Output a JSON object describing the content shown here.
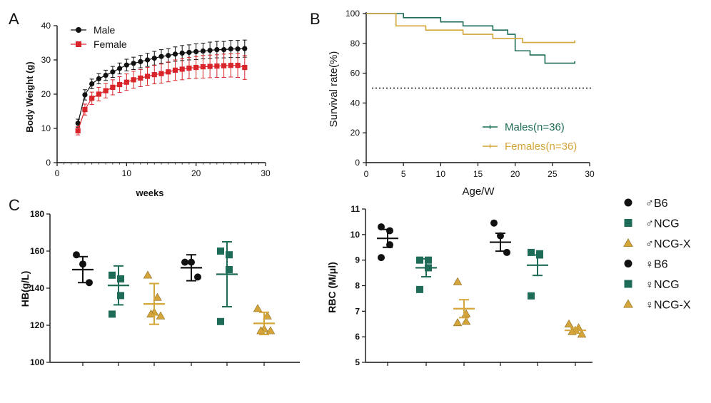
{
  "colors": {
    "black": "#111111",
    "red": "#d9252a",
    "teal": "#1e6b57",
    "gold": "#d4a53a"
  },
  "chart_data": [
    {
      "panel": "A",
      "type": "line",
      "xlabel": "weeks",
      "ylabel": "Body Weight (g)",
      "xlim": [
        0,
        30
      ],
      "ylim": [
        0,
        40
      ],
      "xticks": [
        "0",
        "10",
        "20",
        "30"
      ],
      "yticks": [
        "0",
        "10",
        "20",
        "30",
        "40"
      ],
      "legend": {
        "position": "top-left"
      },
      "x": [
        3,
        4,
        5,
        6,
        7,
        8,
        9,
        10,
        11,
        12,
        13,
        14,
        15,
        16,
        17,
        18,
        19,
        20,
        21,
        22,
        23,
        24,
        25,
        26,
        27
      ],
      "series": [
        {
          "name": "Male",
          "marker": "circle",
          "color": "#111111",
          "values": [
            11.5,
            19.8,
            23,
            24.5,
            25.5,
            26.5,
            27.5,
            28.5,
            29,
            29.5,
            30,
            30.5,
            31,
            31.3,
            31.7,
            32,
            32.2,
            32.4,
            32.6,
            32.8,
            33,
            33,
            33.2,
            33.2,
            33.3
          ],
          "errors": [
            1.2,
            1.5,
            1.4,
            1.5,
            1.5,
            1.6,
            1.6,
            1.7,
            1.8,
            1.8,
            1.9,
            2,
            2,
            2,
            2.1,
            2.2,
            2.2,
            2.3,
            2.3,
            2.4,
            2.4,
            2.4,
            2.5,
            2.5,
            2.5
          ]
        },
        {
          "name": "Female",
          "marker": "square",
          "color": "#d9252a",
          "values": [
            9.3,
            15.5,
            18.8,
            20,
            21,
            22,
            22.8,
            23.5,
            24.2,
            24.7,
            25.2,
            25.7,
            26,
            26.5,
            27,
            27.3,
            27.6,
            27.8,
            28,
            28.1,
            28.2,
            28.3,
            28.4,
            28.4,
            27.8
          ],
          "errors": [
            1.2,
            1.6,
            1.8,
            2,
            2.1,
            2.2,
            2.3,
            2.4,
            2.5,
            2.5,
            2.6,
            2.7,
            2.8,
            2.9,
            3,
            3.1,
            3.1,
            3.2,
            3.3,
            3.3,
            3.3,
            3.4,
            3.4,
            3.5,
            3.5
          ]
        }
      ]
    },
    {
      "panel": "B",
      "type": "line",
      "xlabel": "Age/W",
      "ylabel": "Survival rate(%)",
      "xlim": [
        0,
        30
      ],
      "ylim": [
        0,
        100
      ],
      "xticks": [
        "0",
        "5",
        "10",
        "15",
        "20",
        "25",
        "30"
      ],
      "yticks": [
        "0",
        "20",
        "40",
        "60",
        "80",
        "100"
      ],
      "reference_line": 50,
      "legend": {
        "position": "bottom-right"
      },
      "series": [
        {
          "name": "Males(n=36)",
          "color": "#1e6b57",
          "steps": [
            [
              0,
              100
            ],
            [
              5,
              100
            ],
            [
              5,
              97.2
            ],
            [
              10,
              97.2
            ],
            [
              10,
              94.4
            ],
            [
              13,
              94.4
            ],
            [
              13,
              91.7
            ],
            [
              17,
              91.7
            ],
            [
              17,
              88.9
            ],
            [
              19,
              88.9
            ],
            [
              19,
              86.1
            ],
            [
              20,
              86.1
            ],
            [
              20,
              75
            ],
            [
              22,
              75
            ],
            [
              22,
              72.2
            ],
            [
              24,
              72.2
            ],
            [
              24,
              66.7
            ],
            [
              28,
              66.7
            ],
            [
              28,
              68
            ]
          ]
        },
        {
          "name": "Females(n=36)",
          "color": "#d4a53a",
          "steps": [
            [
              0,
              100
            ],
            [
              4,
              100
            ],
            [
              4,
              91.7
            ],
            [
              8,
              91.7
            ],
            [
              8,
              88.9
            ],
            [
              13,
              88.9
            ],
            [
              13,
              86.1
            ],
            [
              17,
              86.1
            ],
            [
              17,
              83.3
            ],
            [
              21,
              83.3
            ],
            [
              21,
              80.6
            ],
            [
              28,
              80.6
            ],
            [
              28,
              82
            ]
          ]
        }
      ]
    },
    {
      "panel": "C",
      "type": "scatter",
      "ylabel": "HB(g/L)",
      "ylim": [
        100,
        180
      ],
      "yticks": [
        "100",
        "120",
        "140",
        "160",
        "180"
      ],
      "groups": [
        {
          "name": "♂B6",
          "marker": "circle",
          "color": "#111111",
          "mean": 150,
          "sd": 7,
          "points": [
            158,
            153,
            143
          ]
        },
        {
          "name": "♂NCG",
          "marker": "square",
          "color": "#1e6b57",
          "mean": 141.5,
          "sd": 10.5,
          "points": [
            147,
            145,
            136,
            126
          ]
        },
        {
          "name": "♂NCG-X",
          "marker": "triangle",
          "color": "#d4a53a",
          "mean": 131.5,
          "sd": 11,
          "points": [
            147,
            135,
            127,
            126,
            125
          ]
        },
        {
          "name": "♀B6",
          "marker": "circle",
          "color": "#111111",
          "mean": 151,
          "sd": 7,
          "points": [
            154,
            154,
            146
          ]
        },
        {
          "name": "♀NCG",
          "marker": "square",
          "color": "#1e6b57",
          "mean": 147.5,
          "sd": 17.5,
          "points": [
            160,
            158,
            150,
            122
          ]
        },
        {
          "name": "♀NCG-X",
          "marker": "triangle",
          "color": "#d4a53a",
          "mean": 121,
          "sd": 6,
          "points": [
            129,
            125,
            118,
            117,
            117
          ]
        }
      ]
    },
    {
      "panel": "C",
      "type": "scatter",
      "ylabel": "RBC (M/μl)",
      "ylim": [
        5,
        11
      ],
      "yticks": [
        "5",
        "6",
        "7",
        "8",
        "9",
        "10",
        "11"
      ],
      "groups": [
        {
          "name": "♂B6",
          "marker": "circle",
          "color": "#111111",
          "mean": 9.85,
          "sd": 0.35,
          "points": [
            10.3,
            10.15,
            9.6,
            9.1
          ]
        },
        {
          "name": "♂NCG",
          "marker": "square",
          "color": "#1e6b57",
          "mean": 8.7,
          "sd": 0.35,
          "points": [
            9.0,
            9.0,
            8.7,
            7.85
          ]
        },
        {
          "name": "♂NCG-X",
          "marker": "triangle",
          "color": "#d4a53a",
          "mean": 7.1,
          "sd": 0.35,
          "points": [
            8.15,
            6.9,
            6.6,
            6.55
          ]
        },
        {
          "name": "♀B6",
          "marker": "circle",
          "color": "#111111",
          "mean": 9.7,
          "sd": 0.35,
          "points": [
            10.45,
            9.95,
            9.3
          ]
        },
        {
          "name": "♀NCG",
          "marker": "square",
          "color": "#1e6b57",
          "mean": 8.8,
          "sd": 0.4,
          "points": [
            9.3,
            9.25,
            9.2,
            7.6
          ]
        },
        {
          "name": "♀NCG-X",
          "marker": "triangle",
          "color": "#d4a53a",
          "mean": 6.25,
          "sd": 0.1,
          "points": [
            6.5,
            6.35,
            6.25,
            6.2,
            6.1
          ]
        }
      ]
    }
  ],
  "panel_labels": {
    "a": "A",
    "b": "B",
    "c": "C"
  },
  "legend_c": [
    {
      "label": "♂B6",
      "marker": "circle",
      "color": "#111111"
    },
    {
      "label": "♂NCG",
      "marker": "square",
      "color": "#1e6b57"
    },
    {
      "label": "♂NCG-X",
      "marker": "triangle",
      "color": "#d4a53a"
    },
    {
      "label": "♀B6",
      "marker": "circle",
      "color": "#111111"
    },
    {
      "label": "♀NCG",
      "marker": "square",
      "color": "#1e6b57"
    },
    {
      "label": "♀NCG-X",
      "marker": "triangle",
      "color": "#d4a53a"
    }
  ]
}
